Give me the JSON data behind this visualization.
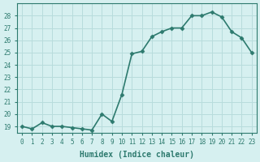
{
  "x_values": [
    0,
    1,
    2,
    3,
    4,
    5,
    6,
    7,
    8,
    9,
    10,
    11,
    12,
    13,
    14,
    15,
    16,
    17,
    18,
    19,
    20,
    21,
    22,
    23
  ],
  "y_values": [
    19,
    18.8,
    19.3,
    19,
    19,
    18.9,
    18.8,
    18.7,
    20,
    19.4,
    21.6,
    24.9,
    25.1,
    26.3,
    26.7,
    27,
    27,
    28,
    28,
    28.3,
    27.9,
    26.7,
    26.2,
    25
  ],
  "xlabel": "Humidex (Indice chaleur)",
  "ylim": [
    18.5,
    29
  ],
  "xlim": [
    -0.5,
    23.5
  ],
  "yticks": [
    19,
    20,
    21,
    22,
    23,
    24,
    25,
    26,
    27,
    28
  ],
  "xticks": [
    0,
    1,
    2,
    3,
    4,
    5,
    6,
    7,
    8,
    9,
    10,
    11,
    12,
    13,
    14,
    15,
    16,
    17,
    18,
    19,
    20,
    21,
    22,
    23
  ],
  "line_color": "#2d7a6e",
  "marker_color": "#2d7a6e",
  "bg_color": "#d6f0f0",
  "grid_color": "#b8dcdc",
  "tick_label_color": "#2d7a6e",
  "xlabel_color": "#2d7a6e",
  "marker": "D",
  "marker_size": 2.5,
  "line_width": 1.2
}
